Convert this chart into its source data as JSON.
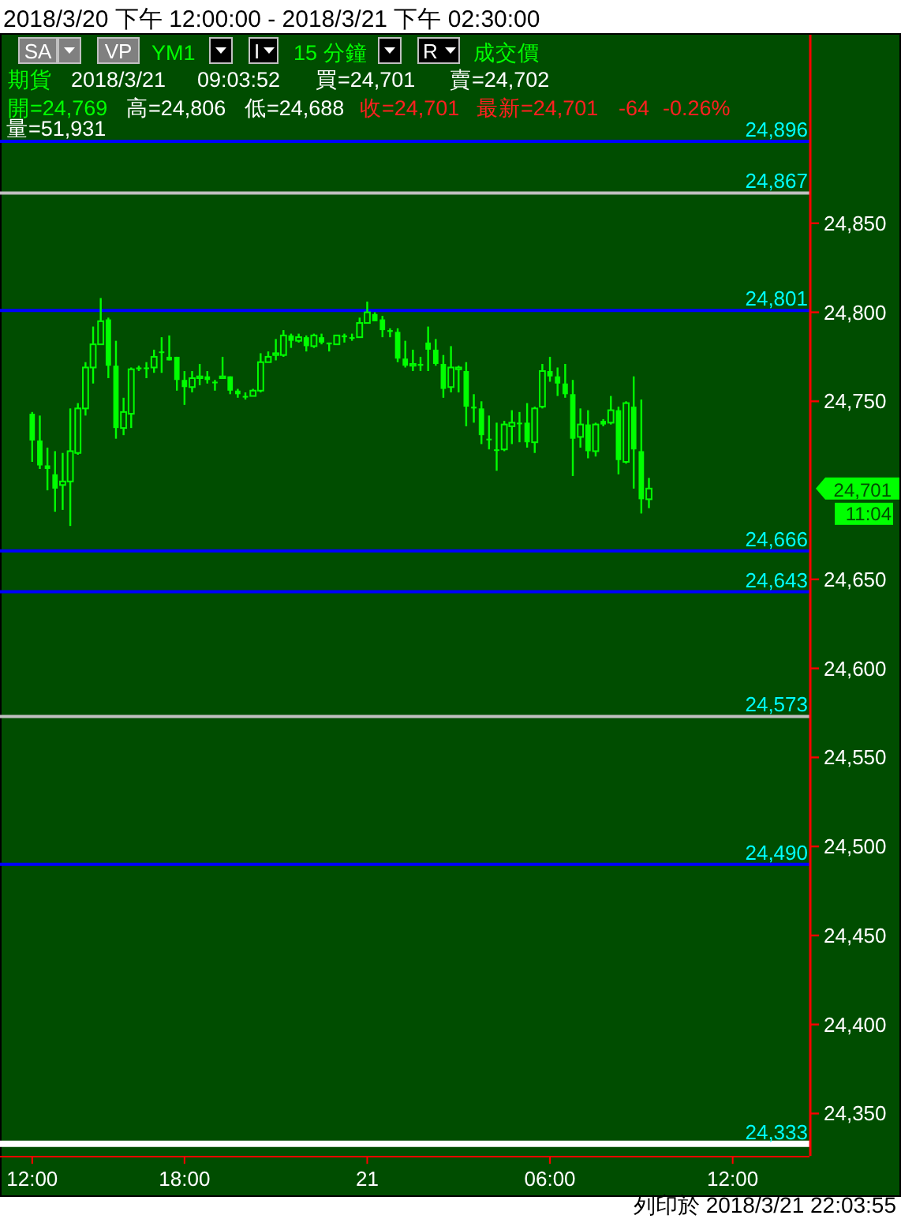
{
  "chart_data": {
    "type": "candlestick",
    "title": "2018/3/20 下午 12:00:00 - 2018/3/21 下午 02:30:00",
    "categories": [
      "12:00",
      null,
      null,
      null,
      null,
      null,
      null,
      null,
      null,
      null,
      null,
      null,
      null,
      null,
      null,
      null,
      null,
      null,
      null,
      null,
      "18:00",
      null,
      null,
      null,
      null,
      null,
      null,
      null,
      null,
      null,
      null,
      null,
      null,
      null,
      null,
      null,
      null,
      null,
      null,
      null,
      null,
      null,
      null,
      null,
      "21",
      null,
      null,
      null,
      null,
      null,
      null,
      null,
      null,
      null,
      null,
      null,
      null,
      null,
      null,
      null,
      null,
      null,
      null,
      null,
      null,
      null,
      null,
      null,
      "06:00",
      null,
      null,
      null,
      null,
      null,
      null,
      null,
      null,
      null,
      null,
      null,
      null,
      null,
      null,
      null,
      null,
      null,
      null,
      null,
      null,
      null,
      null,
      null,
      "12:00",
      null,
      null,
      null,
      null,
      null,
      null,
      null,
      null,
      null,
      null
    ],
    "color": "#00ff00",
    "ohlc": [
      [
        24743,
        24744,
        24716,
        24728
      ],
      [
        24728,
        24742,
        24712,
        24714
      ],
      [
        24714,
        24724,
        24700,
        24712
      ],
      [
        24709,
        24722,
        24688,
        24701
      ],
      [
        24703,
        24721,
        24689,
        24705
      ],
      [
        24705,
        24746,
        24680,
        24722
      ],
      [
        24721,
        24749,
        24720,
        24746
      ],
      [
        24746,
        24772,
        24742,
        24769
      ],
      [
        24769,
        24792,
        24760,
        24782
      ],
      [
        24782,
        24808,
        24782,
        24795
      ],
      [
        24796,
        24797,
        24763,
        24770
      ],
      [
        24770,
        24784,
        24729,
        24735
      ],
      [
        24735,
        24752,
        24731,
        24744
      ],
      [
        24743,
        24769,
        24735,
        24768
      ],
      [
        24769,
        24770,
        24767,
        24768
      ],
      [
        24769,
        24772,
        24763,
        24769
      ],
      [
        24769,
        24779,
        24766,
        24775
      ],
      [
        24778,
        24786,
        24766,
        24778
      ],
      [
        24775,
        24787,
        24773,
        24773
      ],
      [
        24775,
        24775,
        24756,
        24762
      ],
      [
        24762,
        24767,
        24748,
        24758
      ],
      [
        24758,
        24767,
        24755,
        24763
      ],
      [
        24763,
        24771,
        24759,
        24764
      ],
      [
        24764,
        24767,
        24760,
        24762
      ],
      [
        24761,
        24762,
        24756,
        24761
      ],
      [
        24763,
        24775,
        24763,
        24764
      ],
      [
        24764,
        24764,
        24754,
        24756
      ],
      [
        24756,
        24757,
        24752,
        24754
      ],
      [
        24753,
        24755,
        24751,
        24753
      ],
      [
        24753,
        24757,
        24753,
        24756
      ],
      [
        24756,
        24777,
        24755,
        24772
      ],
      [
        24772,
        24778,
        24772,
        24775
      ],
      [
        24776,
        24785,
        24773,
        24777
      ],
      [
        24776,
        24790,
        24775,
        24787
      ],
      [
        24787,
        24788,
        24780,
        24784
      ],
      [
        24784,
        24788,
        24783,
        24786
      ],
      [
        24786,
        24787,
        24778,
        24781
      ],
      [
        24781,
        24788,
        24780,
        24787
      ],
      [
        24786,
        24788,
        24782,
        24783
      ],
      [
        24783,
        24783,
        24778,
        24782
      ],
      [
        24782,
        24787,
        24782,
        24787
      ],
      [
        24787,
        24788,
        24783,
        24786
      ],
      [
        24786,
        24788,
        24784,
        24786
      ],
      [
        24786,
        24797,
        24786,
        24794
      ],
      [
        24794,
        24806,
        24794,
        24800
      ],
      [
        24799,
        24800,
        24795,
        24795
      ],
      [
        24796,
        24798,
        24786,
        24790
      ],
      [
        24790,
        24791,
        24786,
        24789
      ],
      [
        24789,
        24791,
        24772,
        24774
      ],
      [
        24774,
        24784,
        24769,
        24770
      ],
      [
        24770,
        24779,
        24767,
        24771
      ],
      [
        24771,
        24775,
        24767,
        24770
      ],
      [
        24783,
        24792,
        24767,
        24779
      ],
      [
        24779,
        24785,
        24770,
        24771
      ],
      [
        24771,
        24776,
        24752,
        24757
      ],
      [
        24758,
        24781,
        24755,
        24769
      ],
      [
        24768,
        24770,
        24755,
        24769
      ],
      [
        24767,
        24772,
        24736,
        24747
      ],
      [
        24747,
        24754,
        24738,
        24746
      ],
      [
        24746,
        24750,
        24726,
        24731
      ],
      [
        24729,
        24742,
        24723,
        24729
      ],
      [
        24723,
        24738,
        24711,
        24723
      ],
      [
        24723,
        24739,
        24722,
        24737
      ],
      [
        24736,
        24745,
        24726,
        24738
      ],
      [
        24738,
        24744,
        24727,
        24738
      ],
      [
        24738,
        24749,
        24724,
        24727
      ],
      [
        24727,
        24747,
        24721,
        24746
      ],
      [
        24747,
        24771,
        24746,
        24767
      ],
      [
        24767,
        24775,
        24761,
        24764
      ],
      [
        24764,
        24769,
        24753,
        24760
      ],
      [
        24760,
        24771,
        24752,
        24754
      ],
      [
        24754,
        24762,
        24708,
        24729
      ],
      [
        24730,
        24746,
        24724,
        24737
      ],
      [
        24737,
        24745,
        24718,
        24722
      ],
      [
        24722,
        24738,
        24719,
        24737
      ],
      [
        24739,
        24740,
        24736,
        24737
      ],
      [
        24738,
        24753,
        24737,
        24745
      ],
      [
        24745,
        24747,
        24709,
        24717
      ],
      [
        24716,
        24750,
        24715,
        24749
      ],
      [
        24747,
        24764,
        24701,
        24723
      ],
      [
        24722,
        24751,
        24687,
        24695
      ],
      [
        24695,
        24707,
        24690,
        24701
      ],
      null,
      null,
      null,
      null,
      null,
      null,
      null,
      null,
      null,
      null,
      null,
      null,
      null,
      null,
      null,
      null,
      null,
      null,
      null,
      null,
      null
    ],
    "ylim": [
      24328,
      24955
    ],
    "yticks": [
      {
        "value": 24350,
        "label": "24,350"
      },
      {
        "value": 24400,
        "label": "24,400"
      },
      {
        "value": 24450,
        "label": "24,450"
      },
      {
        "value": 24500,
        "label": "24,500"
      },
      {
        "value": 24550,
        "label": "24,550"
      },
      {
        "value": 24600,
        "label": "24,600"
      },
      {
        "value": 24650,
        "label": "24,650"
      },
      {
        "value": 24750,
        "label": "24,750"
      },
      {
        "value": 24800,
        "label": "24,800"
      },
      {
        "value": 24850,
        "label": "24,850"
      }
    ],
    "ref_lines": [
      {
        "axis": "y",
        "value": 24896,
        "label": "24,896",
        "color": "#0000ff"
      },
      {
        "axis": "y",
        "value": 24867,
        "label": "24,867",
        "color": "#c0c0c0"
      },
      {
        "axis": "y",
        "value": 24801,
        "label": "24,801",
        "color": "#0000ff"
      },
      {
        "axis": "y",
        "value": 24666,
        "label": "24,666",
        "color": "#0000ff"
      },
      {
        "axis": "y",
        "value": 24643,
        "label": "24,643",
        "color": "#0000ff"
      },
      {
        "axis": "y",
        "value": 24573,
        "label": "24,573",
        "color": "#c0c0c0"
      },
      {
        "axis": "y",
        "value": 24490,
        "label": "24,490",
        "color": "#0000ff"
      },
      {
        "axis": "y",
        "value": 24333,
        "label": "24,333",
        "color": "#ffffff"
      }
    ],
    "annotations": [
      "SA",
      "VP",
      "YM1",
      "I",
      "15 分鐘",
      "R",
      "成交價",
      "期貨",
      "2018/3/21",
      "09:03:52",
      "買=24,701",
      "賣=24,702",
      "開=24,769",
      "高=24,806",
      "低=24,688",
      "收=24,701",
      "最新=24,701",
      "-64",
      "-0.26%",
      "量=51,931",
      "24,701",
      "11:04",
      "列印於 2018/3/21 22:03:55"
    ]
  }
}
